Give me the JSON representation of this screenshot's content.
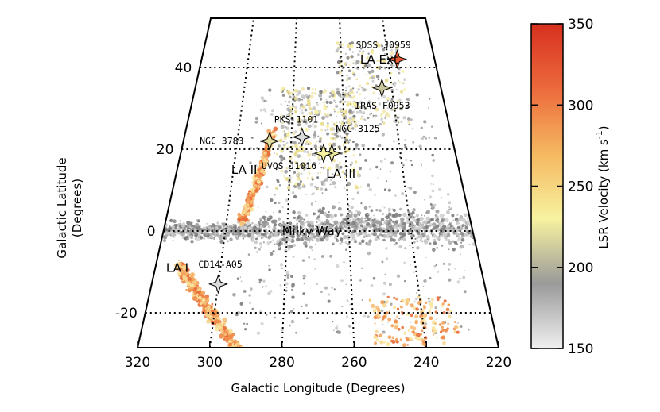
{
  "chart_data": {
    "type": "scatter",
    "title": "",
    "projection": "galactic sky map (curved grid)",
    "xlabel": "Galactic Longitude (Degrees)",
    "ylabel": "Galactic Latitude (Degrees)",
    "xlim": [
      320,
      220
    ],
    "ylim": [
      -30,
      50
    ],
    "xticks": [
      "320",
      "300",
      "280",
      "260",
      "240",
      "220"
    ],
    "yticks": [
      "40",
      "20",
      "0",
      "-20"
    ],
    "grid": true,
    "colorbar": {
      "label": "LSR Velocity (km s",
      "label_sup": "-1",
      "label_close": ")",
      "min": 150,
      "max": 350,
      "ticks": [
        "350",
        "300",
        "250",
        "200",
        "150"
      ],
      "colors": [
        "#f0f0f0",
        "#9a9a9a",
        "#f7f2a0",
        "#f5b860",
        "#ec6a3c",
        "#d7301f"
      ]
    },
    "sources": [
      {
        "name": "SDSS J0959",
        "l": 236,
        "b": 42,
        "velocity": 320
      },
      {
        "name": "IRAS F0953",
        "l": 244,
        "b": 35,
        "velocity": 210
      },
      {
        "name": "PKS 1101",
        "l": 276,
        "b": 23,
        "velocity": 160
      },
      {
        "name": "NGC 3783",
        "l": 288,
        "b": 22,
        "velocity": 220
      },
      {
        "name": "NGC 3125",
        "l": 265,
        "b": 19,
        "velocity": 225
      },
      {
        "name": "UVQS J1016",
        "l": 268,
        "b": 19,
        "velocity": 230
      },
      {
        "name": "CD14-A05",
        "l": 300,
        "b": -13,
        "velocity": 160
      }
    ],
    "regions": [
      {
        "name": "LA Ext",
        "l": 244,
        "b": 41
      },
      {
        "name": "LA II",
        "l": 296,
        "b": 14
      },
      {
        "name": "LA III",
        "l": 262,
        "b": 13
      },
      {
        "name": "LA I",
        "l": 313,
        "b": -10
      },
      {
        "name": "Milky Way",
        "l": 272,
        "b": -1
      }
    ]
  }
}
